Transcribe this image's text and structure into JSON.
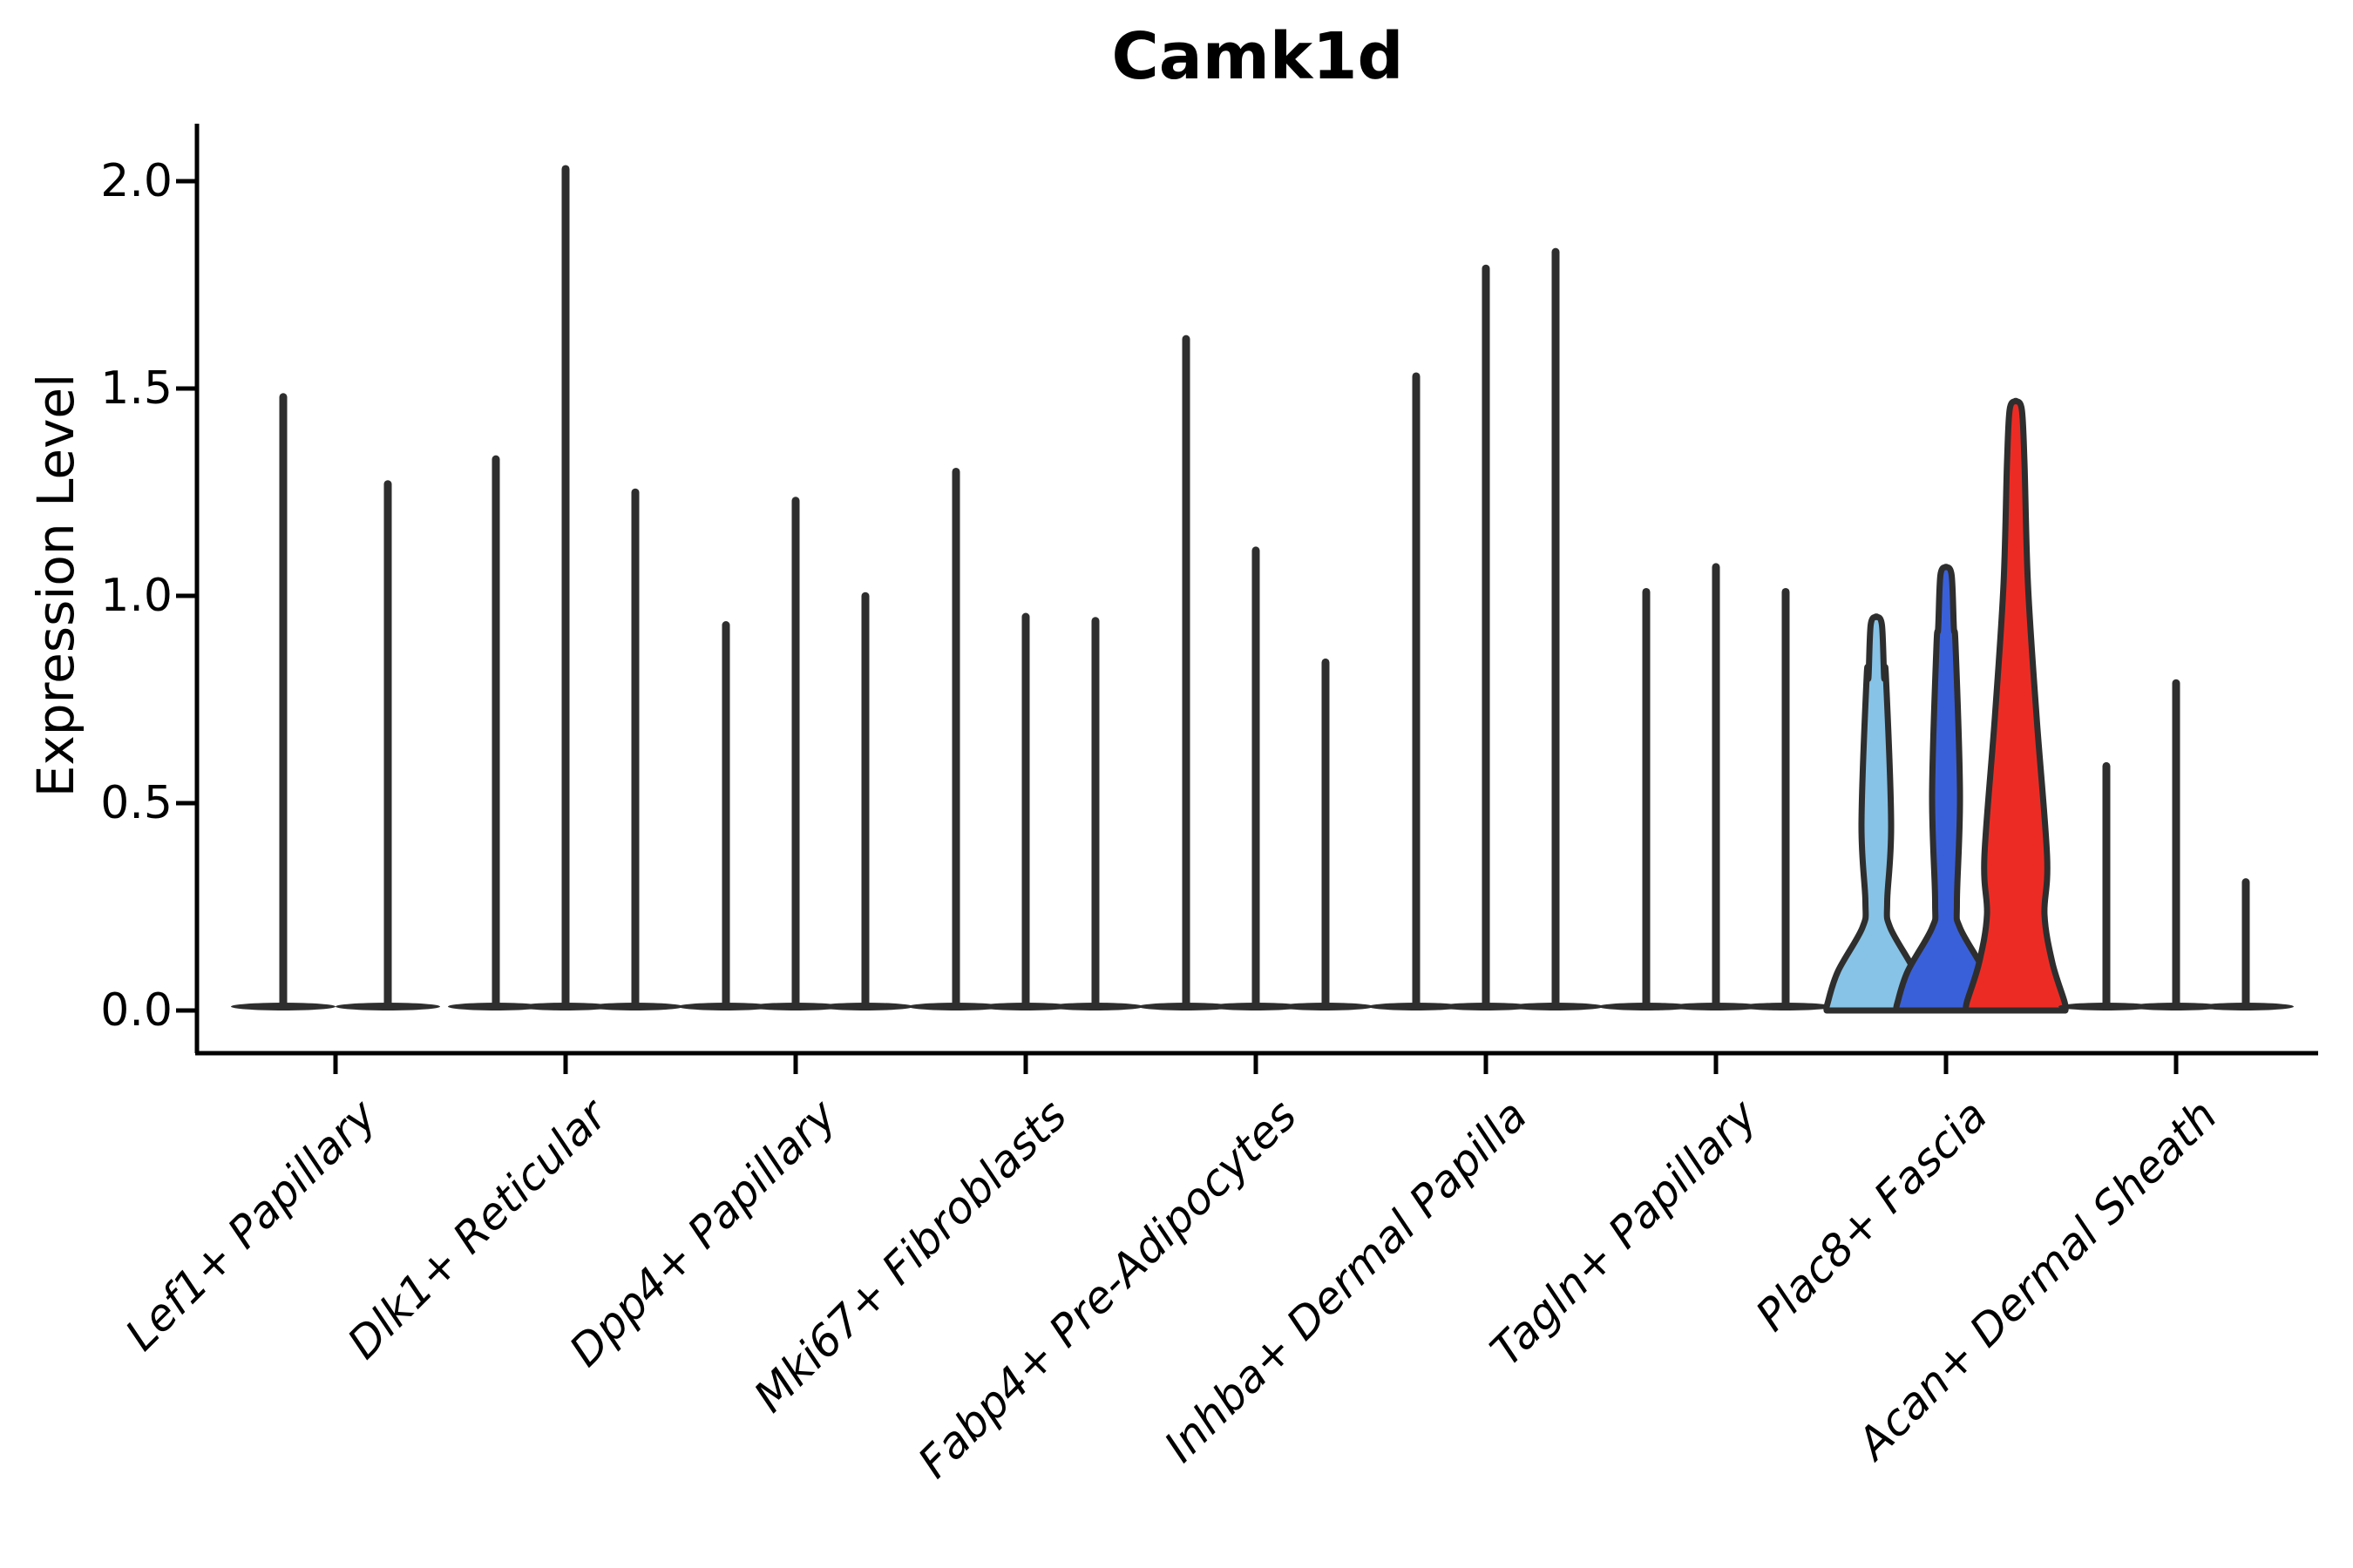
{
  "title": "Camk1d",
  "ylabel": "Expression Level",
  "colors": {
    "outline": "#2e2e2e",
    "light_blue": "#87c3e6",
    "blue": "#3a60d9",
    "red": "#ec2c24",
    "text": "#000000",
    "background": "#ffffff"
  },
  "chart_data": {
    "type": "violin",
    "title": "Camk1d",
    "xlabel": "",
    "ylabel": "Expression Level",
    "ylim": [
      0,
      2.14
    ],
    "yticks": [
      0.0,
      0.5,
      1.0,
      1.5,
      2.0
    ],
    "ytick_labels": [
      "0.0",
      "0.5",
      "1.0",
      "1.5",
      "2.0"
    ],
    "grid": false,
    "legend_position": "none",
    "categories": [
      "Lef1+ Papillary",
      "Dlk1+ Reticular",
      "Dpp4+ Papillary",
      "Mki67+ Fibroblasts",
      "Fabp4+ Pre-Adipocytes",
      "Inhba+ Dermal Papilla",
      "Tagln+ Papillary",
      "Plac8+ Fascia",
      "Acan+ Dermal Sheath"
    ],
    "groups": [
      {
        "label": "Lef1+ Papillary",
        "violins": [
          {
            "max": 1.49
          },
          {
            "max": 1.28
          }
        ]
      },
      {
        "label": "Dlk1+ Reticular",
        "violins": [
          {
            "max": 1.34
          },
          {
            "max": 2.04
          },
          {
            "max": 1.26
          }
        ]
      },
      {
        "label": "Dpp4+ Papillary",
        "violins": [
          {
            "max": 0.94
          },
          {
            "max": 1.24
          },
          {
            "max": 1.01
          }
        ]
      },
      {
        "label": "Mki67+ Fibroblasts",
        "violins": [
          {
            "max": 1.31
          },
          {
            "max": 0.96
          },
          {
            "max": 0.95
          }
        ]
      },
      {
        "label": "Fabp4+ Pre-Adipocytes",
        "violins": [
          {
            "max": 1.63
          },
          {
            "max": 1.12
          },
          {
            "max": 0.85
          }
        ]
      },
      {
        "label": "Inhba+ Dermal Papilla",
        "violins": [
          {
            "max": 1.54
          },
          {
            "max": 1.8
          },
          {
            "max": 1.84
          }
        ]
      },
      {
        "label": "Tagln+ Papillary",
        "violins": [
          {
            "max": 1.02
          },
          {
            "max": 1.08
          },
          {
            "max": 1.02
          }
        ]
      },
      {
        "label": "Plac8+ Fascia",
        "violins": [
          {
            "max": 0.95,
            "fill": "#87c3e6",
            "shape": "bulge",
            "bulge_value": 0.45,
            "bulge_halfwidth": 17
          },
          {
            "max": 1.07,
            "fill": "#3a60d9",
            "shape": "bulge",
            "bulge_value": 0.52,
            "bulge_halfwidth": 16
          },
          {
            "max": 1.47,
            "fill": "#ec2c24",
            "shape": "cone",
            "bulge_value": 0.37,
            "bulge_halfwidth": 36
          }
        ]
      },
      {
        "label": "Acan+ Dermal Sheath",
        "violins": [
          {
            "max": 0.6
          },
          {
            "max": 0.8
          },
          {
            "max": 0.32
          }
        ]
      }
    ]
  }
}
